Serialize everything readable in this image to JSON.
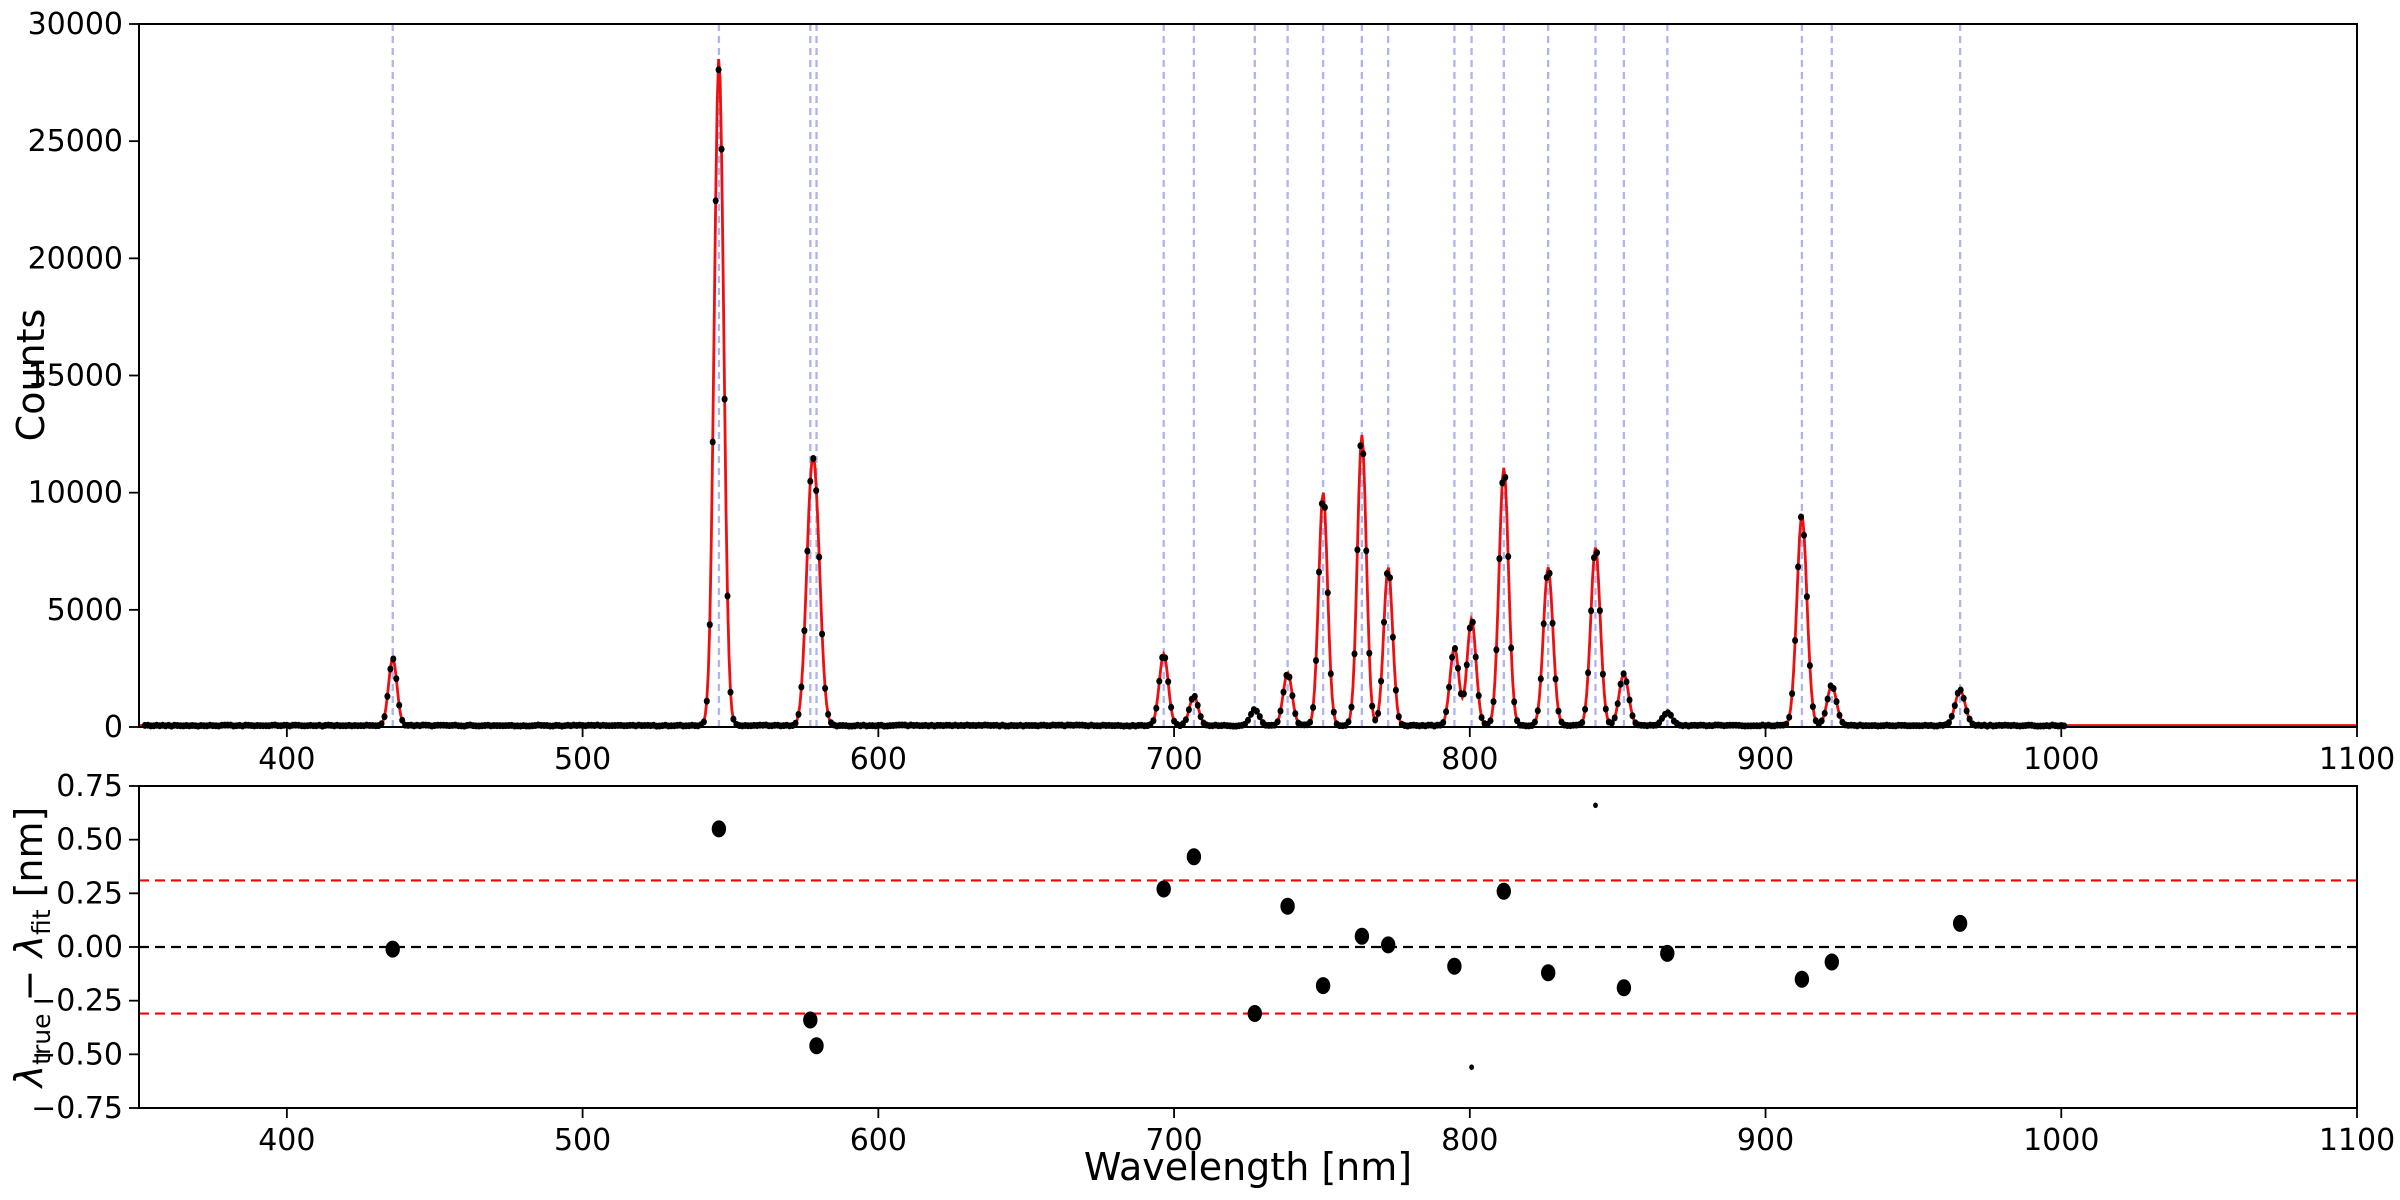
{
  "figure": {
    "xlabel": "Wavelength [nm]",
    "top_ylabel": "Counts",
    "residual_ylabel": {
      "lambda1": "λ",
      "sub1": "true",
      "operator": " − ",
      "lambda2": "λ",
      "sub2": "fit",
      "units": " [nm]"
    },
    "background": "#ffffff",
    "colors": {
      "fit_line": "#ee1010",
      "peak_marker_lines": "#aeb4ef",
      "data_points": "#000000",
      "zero_line": "#000000",
      "tolerance_lines": "#ff0000"
    }
  },
  "chart_data": [
    {
      "type": "line",
      "title": "",
      "xlabel": "Wavelength [nm]",
      "ylabel": "Counts",
      "xlim": [
        350,
        1100
      ],
      "ylim": [
        0,
        30000
      ],
      "x_ticks": [
        {
          "value": 400,
          "label": "400"
        },
        {
          "value": 500,
          "label": "500"
        },
        {
          "value": 600,
          "label": "600"
        },
        {
          "value": 700,
          "label": "700"
        },
        {
          "value": 800,
          "label": "800"
        },
        {
          "value": 900,
          "label": "900"
        },
        {
          "value": 1000,
          "label": "1000"
        },
        {
          "value": 1100,
          "label": "1100"
        }
      ],
      "y_ticks": [
        {
          "value": 0,
          "label": "0"
        },
        {
          "value": 5000,
          "label": "5000"
        },
        {
          "value": 10000,
          "label": "10000"
        },
        {
          "value": 15000,
          "label": "15000"
        },
        {
          "value": 20000,
          "label": "20000"
        },
        {
          "value": 25000,
          "label": "25000"
        },
        {
          "value": 30000,
          "label": "30000"
        }
      ],
      "grid": false,
      "legend": "none",
      "baseline_counts": 62,
      "data_wavelength_range": [
        352,
        1001
      ],
      "data_sampling_step_nm": 1.0,
      "fit_extends_to_nm": 1100,
      "peaks": [
        {
          "wavelength": 435.8,
          "amplitude": 2900,
          "sigma": 1.4
        },
        {
          "wavelength": 546.1,
          "amplitude": 28500,
          "sigma": 1.6
        },
        {
          "wavelength": 577.0,
          "amplitude": 7400,
          "sigma": 1.7
        },
        {
          "wavelength": 579.1,
          "amplitude": 6500,
          "sigma": 1.7
        },
        {
          "wavelength": 696.5,
          "amplitude": 3050,
          "sigma": 1.5
        },
        {
          "wavelength": 706.7,
          "amplitude": 1250,
          "sigma": 1.5
        },
        {
          "wavelength": 727.3,
          "amplitude": 700,
          "sigma": 1.5
        },
        {
          "wavelength": 738.4,
          "amplitude": 2250,
          "sigma": 1.5
        },
        {
          "wavelength": 750.4,
          "amplitude": 9950,
          "sigma": 1.5
        },
        {
          "wavelength": 763.5,
          "amplitude": 12400,
          "sigma": 1.5
        },
        {
          "wavelength": 772.4,
          "amplitude": 6750,
          "sigma": 1.5
        },
        {
          "wavelength": 794.8,
          "amplitude": 3350,
          "sigma": 1.5
        },
        {
          "wavelength": 800.6,
          "amplitude": 4550,
          "sigma": 1.5
        },
        {
          "wavelength": 811.5,
          "amplitude": 11000,
          "sigma": 1.6
        },
        {
          "wavelength": 826.5,
          "amplitude": 6750,
          "sigma": 1.6
        },
        {
          "wavelength": 842.5,
          "amplitude": 7600,
          "sigma": 1.6
        },
        {
          "wavelength": 852.1,
          "amplitude": 2200,
          "sigma": 1.6
        },
        {
          "wavelength": 866.8,
          "amplitude": 550,
          "sigma": 1.6
        },
        {
          "wavelength": 912.3,
          "amplitude": 8950,
          "sigma": 1.7
        },
        {
          "wavelength": 922.4,
          "amplitude": 1700,
          "sigma": 1.6
        },
        {
          "wavelength": 965.8,
          "amplitude": 1500,
          "sigma": 1.7
        }
      ]
    },
    {
      "type": "scatter",
      "title": "",
      "xlabel": "Wavelength [nm]",
      "ylabel": "λtrue − λfit [nm]",
      "xlim": [
        350,
        1100
      ],
      "ylim": [
        -0.75,
        0.75
      ],
      "x_ticks": [
        {
          "value": 400,
          "label": "400"
        },
        {
          "value": 500,
          "label": "500"
        },
        {
          "value": 600,
          "label": "600"
        },
        {
          "value": 700,
          "label": "700"
        },
        {
          "value": 800,
          "label": "800"
        },
        {
          "value": 900,
          "label": "900"
        },
        {
          "value": 1000,
          "label": "1000"
        },
        {
          "value": 1100,
          "label": "1100"
        }
      ],
      "y_ticks": [
        {
          "value": -0.75,
          "label": "−0.75"
        },
        {
          "value": -0.5,
          "label": "−0.50"
        },
        {
          "value": -0.25,
          "label": "−0.25"
        },
        {
          "value": 0.0,
          "label": "0.00"
        },
        {
          "value": 0.25,
          "label": "0.25"
        },
        {
          "value": 0.5,
          "label": "0.50"
        },
        {
          "value": 0.75,
          "label": "0.75"
        }
      ],
      "zero_line": 0.0,
      "tolerance_lines": [
        0.31,
        -0.31
      ],
      "points": [
        {
          "wavelength": 435.8,
          "residual": -0.01,
          "marker_radius": 8.5
        },
        {
          "wavelength": 546.1,
          "residual": 0.55,
          "marker_radius": 8.5
        },
        {
          "wavelength": 577.0,
          "residual": -0.34,
          "marker_radius": 8.5
        },
        {
          "wavelength": 579.1,
          "residual": -0.46,
          "marker_radius": 8.5
        },
        {
          "wavelength": 696.5,
          "residual": 0.27,
          "marker_radius": 8.5
        },
        {
          "wavelength": 706.7,
          "residual": 0.42,
          "marker_radius": 8.5
        },
        {
          "wavelength": 727.3,
          "residual": -0.31,
          "marker_radius": 8.5
        },
        {
          "wavelength": 738.4,
          "residual": 0.19,
          "marker_radius": 8.5
        },
        {
          "wavelength": 750.4,
          "residual": -0.18,
          "marker_radius": 8.5
        },
        {
          "wavelength": 763.5,
          "residual": 0.05,
          "marker_radius": 8.5
        },
        {
          "wavelength": 772.4,
          "residual": 0.01,
          "marker_radius": 8.5
        },
        {
          "wavelength": 794.8,
          "residual": -0.09,
          "marker_radius": 8.5
        },
        {
          "wavelength": 800.6,
          "residual": -0.56,
          "marker_radius": 2.8
        },
        {
          "wavelength": 811.5,
          "residual": 0.26,
          "marker_radius": 8.5
        },
        {
          "wavelength": 826.5,
          "residual": -0.12,
          "marker_radius": 8.5
        },
        {
          "wavelength": 842.5,
          "residual": 0.66,
          "marker_radius": 2.8
        },
        {
          "wavelength": 852.1,
          "residual": -0.19,
          "marker_radius": 8.5
        },
        {
          "wavelength": 866.8,
          "residual": -0.03,
          "marker_radius": 8.5
        },
        {
          "wavelength": 912.3,
          "residual": -0.15,
          "marker_radius": 8.5
        },
        {
          "wavelength": 922.4,
          "residual": -0.07,
          "marker_radius": 8.5
        },
        {
          "wavelength": 965.8,
          "residual": 0.11,
          "marker_radius": 8.5
        }
      ]
    }
  ]
}
